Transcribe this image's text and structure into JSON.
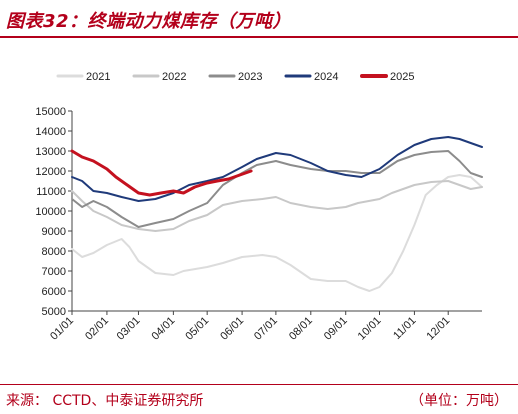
{
  "header": {
    "title": "图表32：终端动力煤库存（万吨）"
  },
  "footer": {
    "source": "来源：    CCTD、中泰证券研究所",
    "unit": "（单位：万吨）"
  },
  "colors": {
    "accent": "#b3001b"
  },
  "chart_data": {
    "type": "line",
    "title": "",
    "xlabel": "",
    "ylabel": "",
    "x_domain": [
      1,
      365
    ],
    "ylim": [
      5000,
      15000
    ],
    "y_ticks": [
      5000,
      6000,
      7000,
      8000,
      9000,
      10000,
      11000,
      12000,
      13000,
      14000,
      15000
    ],
    "y_tick_labels": [
      "5000",
      "6000",
      "7000",
      "8000",
      "9000",
      "10000",
      "11000",
      "12000",
      "13000",
      "14000",
      "15000"
    ],
    "x_ticks": [
      1,
      32,
      60,
      91,
      121,
      152,
      182,
      213,
      244,
      274,
      305,
      335
    ],
    "x_tick_labels": [
      "01/01",
      "02/01",
      "03/01",
      "04/01",
      "05/01",
      "06/01",
      "07/01",
      "08/01",
      "09/01",
      "10/01",
      "11/01",
      "12/01"
    ],
    "grid": false,
    "legend_position": "top",
    "series": [
      {
        "name": "2021",
        "color": "#dcdcdc",
        "width": 2,
        "points": [
          [
            1,
            8100
          ],
          [
            10,
            7700
          ],
          [
            20,
            7900
          ],
          [
            32,
            8300
          ],
          [
            45,
            8600
          ],
          [
            52,
            8200
          ],
          [
            60,
            7500
          ],
          [
            75,
            6900
          ],
          [
            91,
            6800
          ],
          [
            100,
            7000
          ],
          [
            121,
            7200
          ],
          [
            135,
            7400
          ],
          [
            152,
            7700
          ],
          [
            170,
            7800
          ],
          [
            182,
            7700
          ],
          [
            195,
            7300
          ],
          [
            213,
            6600
          ],
          [
            228,
            6500
          ],
          [
            244,
            6500
          ],
          [
            255,
            6200
          ],
          [
            265,
            6000
          ],
          [
            274,
            6200
          ],
          [
            285,
            6900
          ],
          [
            295,
            8000
          ],
          [
            305,
            9300
          ],
          [
            315,
            10800
          ],
          [
            325,
            11300
          ],
          [
            335,
            11700
          ],
          [
            345,
            11800
          ],
          [
            355,
            11700
          ],
          [
            365,
            11200
          ]
        ]
      },
      {
        "name": "2022",
        "color": "#c8c8c8",
        "width": 2,
        "points": [
          [
            1,
            11000
          ],
          [
            10,
            10500
          ],
          [
            20,
            10000
          ],
          [
            32,
            9700
          ],
          [
            45,
            9300
          ],
          [
            60,
            9100
          ],
          [
            75,
            9000
          ],
          [
            91,
            9100
          ],
          [
            105,
            9500
          ],
          [
            121,
            9800
          ],
          [
            135,
            10300
          ],
          [
            152,
            10500
          ],
          [
            170,
            10600
          ],
          [
            182,
            10700
          ],
          [
            195,
            10400
          ],
          [
            213,
            10200
          ],
          [
            228,
            10100
          ],
          [
            244,
            10200
          ],
          [
            255,
            10400
          ],
          [
            274,
            10600
          ],
          [
            285,
            10900
          ],
          [
            305,
            11300
          ],
          [
            320,
            11450
          ],
          [
            335,
            11500
          ],
          [
            345,
            11300
          ],
          [
            355,
            11100
          ],
          [
            365,
            11200
          ]
        ]
      },
      {
        "name": "2023",
        "color": "#8c8c8c",
        "width": 2,
        "points": [
          [
            1,
            10600
          ],
          [
            10,
            10200
          ],
          [
            20,
            10500
          ],
          [
            32,
            10200
          ],
          [
            45,
            9700
          ],
          [
            60,
            9200
          ],
          [
            75,
            9400
          ],
          [
            91,
            9600
          ],
          [
            105,
            10000
          ],
          [
            121,
            10400
          ],
          [
            135,
            11300
          ],
          [
            152,
            11900
          ],
          [
            165,
            12300
          ],
          [
            182,
            12500
          ],
          [
            195,
            12300
          ],
          [
            213,
            12100
          ],
          [
            228,
            12000
          ],
          [
            244,
            12000
          ],
          [
            258,
            11900
          ],
          [
            274,
            11900
          ],
          [
            290,
            12500
          ],
          [
            305,
            12800
          ],
          [
            320,
            12950
          ],
          [
            335,
            13000
          ],
          [
            345,
            12500
          ],
          [
            355,
            11900
          ],
          [
            365,
            11700
          ]
        ]
      },
      {
        "name": "2024",
        "color": "#1f3a7a",
        "width": 2,
        "points": [
          [
            1,
            11700
          ],
          [
            10,
            11500
          ],
          [
            20,
            11000
          ],
          [
            32,
            10900
          ],
          [
            45,
            10700
          ],
          [
            60,
            10500
          ],
          [
            75,
            10600
          ],
          [
            91,
            10900
          ],
          [
            105,
            11300
          ],
          [
            121,
            11500
          ],
          [
            135,
            11700
          ],
          [
            152,
            12200
          ],
          [
            165,
            12600
          ],
          [
            182,
            12900
          ],
          [
            195,
            12800
          ],
          [
            213,
            12400
          ],
          [
            228,
            12000
          ],
          [
            244,
            11800
          ],
          [
            258,
            11700
          ],
          [
            274,
            12100
          ],
          [
            290,
            12800
          ],
          [
            305,
            13300
          ],
          [
            320,
            13600
          ],
          [
            335,
            13700
          ],
          [
            345,
            13600
          ],
          [
            355,
            13400
          ],
          [
            365,
            13200
          ]
        ]
      },
      {
        "name": "2025",
        "color": "#c4111f",
        "width": 3,
        "points": [
          [
            1,
            13000
          ],
          [
            10,
            12700
          ],
          [
            20,
            12500
          ],
          [
            32,
            12100
          ],
          [
            40,
            11700
          ],
          [
            50,
            11300
          ],
          [
            60,
            10900
          ],
          [
            70,
            10800
          ],
          [
            80,
            10900
          ],
          [
            91,
            11000
          ],
          [
            100,
            10900
          ],
          [
            110,
            11200
          ],
          [
            121,
            11400
          ],
          [
            130,
            11500
          ],
          [
            140,
            11600
          ],
          [
            150,
            11800
          ],
          [
            160,
            12000
          ]
        ]
      }
    ]
  }
}
